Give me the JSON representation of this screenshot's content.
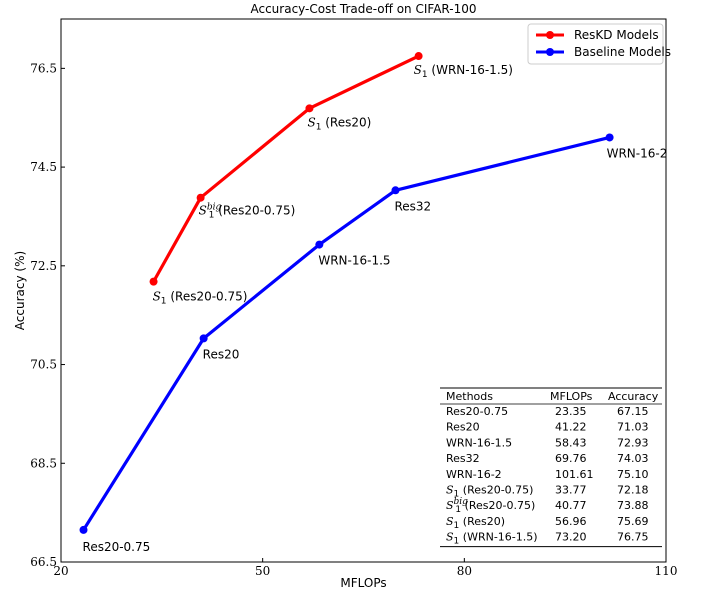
{
  "chart_data": {
    "type": "line",
    "title": "Accuracy-Cost Trade-off on CIFAR-100",
    "xlabel": "MFLOPs",
    "ylabel": "Accuracy (%)",
    "xlim": [
      20,
      110
    ],
    "ylim": [
      66.5,
      77.5
    ],
    "xticks": [
      20,
      50,
      80,
      110
    ],
    "yticks": [
      66.5,
      68.5,
      70.5,
      72.5,
      74.5,
      76.5
    ],
    "grid": false,
    "legend_position": "top-right",
    "series": [
      {
        "name": "ResKD Models",
        "color": "#ff0000",
        "points": [
          {
            "x": 33.77,
            "y": 72.18,
            "label_main": "S",
            "label_sub": "1",
            "label_sup": "",
            "label_rest": " (Res20-0.75)"
          },
          {
            "x": 40.77,
            "y": 73.88,
            "label_main": "S",
            "label_sub": "1",
            "label_sup": "big",
            "label_rest": " (Res20-0.75)"
          },
          {
            "x": 56.96,
            "y": 75.69,
            "label_main": "S",
            "label_sub": "1",
            "label_sup": "",
            "label_rest": " (Res20)"
          },
          {
            "x": 73.2,
            "y": 76.75,
            "label_main": "S",
            "label_sub": "1",
            "label_sup": "",
            "label_rest": " (WRN-16-1.5)"
          }
        ]
      },
      {
        "name": "Baseline Models",
        "color": "#0000ff",
        "points": [
          {
            "x": 23.35,
            "y": 67.15,
            "label_main": "",
            "label_sub": "",
            "label_sup": "",
            "label_rest": "Res20-0.75"
          },
          {
            "x": 41.22,
            "y": 71.03,
            "label_main": "",
            "label_sub": "",
            "label_sup": "",
            "label_rest": "Res20"
          },
          {
            "x": 58.43,
            "y": 72.93,
            "label_main": "",
            "label_sub": "",
            "label_sup": "",
            "label_rest": "WRN-16-1.5"
          },
          {
            "x": 69.76,
            "y": 74.03,
            "label_main": "",
            "label_sub": "",
            "label_sup": "",
            "label_rest": "Res32"
          },
          {
            "x": 101.61,
            "y": 75.1,
            "label_main": "",
            "label_sub": "",
            "label_sup": "",
            "label_rest": "WRN-16-2"
          }
        ]
      }
    ],
    "table": {
      "headers": [
        "Methods",
        "MFLOPs",
        "Accuracy"
      ],
      "rows": [
        {
          "main": "",
          "sub": "",
          "sup": "",
          "rest": "Res20-0.75",
          "mflops": "23.35",
          "acc": "67.15"
        },
        {
          "main": "",
          "sub": "",
          "sup": "",
          "rest": "Res20",
          "mflops": "41.22",
          "acc": "71.03"
        },
        {
          "main": "",
          "sub": "",
          "sup": "",
          "rest": "WRN-16-1.5",
          "mflops": "58.43",
          "acc": "72.93"
        },
        {
          "main": "",
          "sub": "",
          "sup": "",
          "rest": "Res32",
          "mflops": "69.76",
          "acc": "74.03"
        },
        {
          "main": "",
          "sub": "",
          "sup": "",
          "rest": "WRN-16-2",
          "mflops": "101.61",
          "acc": "75.10"
        },
        {
          "main": "S",
          "sub": "1",
          "sup": "",
          "rest": " (Res20-0.75)",
          "mflops": "33.77",
          "acc": "72.18"
        },
        {
          "main": "S",
          "sub": "1",
          "sup": "big",
          "rest": " (Res20-0.75)",
          "mflops": "40.77",
          "acc": "73.88"
        },
        {
          "main": "S",
          "sub": "1",
          "sup": "",
          "rest": " (Res20)",
          "mflops": "56.96",
          "acc": "75.69"
        },
        {
          "main": "S",
          "sub": "1",
          "sup": "",
          "rest": " (WRN-16-1.5)",
          "mflops": "73.20",
          "acc": "76.75"
        }
      ]
    }
  }
}
